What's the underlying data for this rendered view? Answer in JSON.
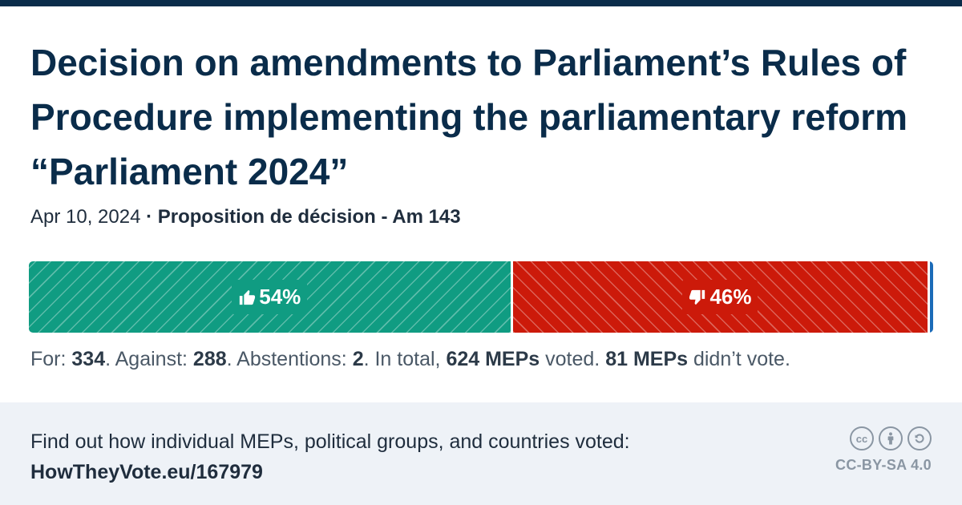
{
  "header": {
    "title": "Decision on amendments to Parliament’s Rules of Procedure implementing the parliamentary reform “Parliament 2024”",
    "date": "Apr 10, 2024",
    "separator": " · ",
    "reference": "Proposition de décision - Am 143"
  },
  "vote_bar": {
    "for_percent_label": "54%",
    "against_percent_label": "46%",
    "for_count": 334,
    "against_count": 288,
    "abstention_count": 2,
    "colors": {
      "for": "#109c82",
      "against": "#cc1a0a",
      "abstention": "#1b6bb8"
    }
  },
  "summary": {
    "for_label": "For: ",
    "for_value": "334",
    "against_label": ". Against: ",
    "against_value": "288",
    "abstentions_label": ". Abstentions: ",
    "abstentions_value": "2",
    "total_label": ". In total, ",
    "total_value": "624 MEPs",
    "voted_label": " voted. ",
    "absent_value": "81 MEPs",
    "absent_label": " didn’t vote."
  },
  "footer": {
    "cta": "Find out how individual MEPs, political groups, and countries voted:",
    "link": "HowTheyVote.eu/167979",
    "license_icons": [
      "cc-icon",
      "by-person-icon",
      "sa-share-alike-icon"
    ],
    "cc_glyph": "cc",
    "license": "CC-BY-SA 4.0"
  }
}
